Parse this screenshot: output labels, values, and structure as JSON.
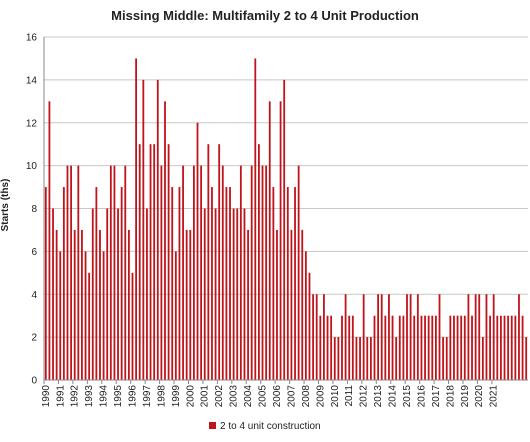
{
  "chart_data": {
    "type": "bar",
    "title": "Missing Middle: Multifamily 2 to 4 Unit Production",
    "ylabel": "Starts (ths)",
    "xlabel": "",
    "ylim": [
      0,
      16
    ],
    "y_ticks": [
      "0",
      "2",
      "4",
      "6",
      "8",
      "10",
      "12",
      "14",
      "16"
    ],
    "x_tick_labels": [
      "1990",
      "1991",
      "1992",
      "1993",
      "1994",
      "1995",
      "1996",
      "1997",
      "1998",
      "1999",
      "2000",
      "2001",
      "2002",
      "2003",
      "2004",
      "2005",
      "2006",
      "2007",
      "2008",
      "2009",
      "2010",
      "2011",
      "2012",
      "2013",
      "2014",
      "2015",
      "2016",
      "2017",
      "2018",
      "2019",
      "2020",
      "2021"
    ],
    "periods_per_year": 4,
    "series": [
      {
        "name": "2 to 4 unit construction",
        "color": "#c0141b",
        "values": [
          9,
          13,
          8,
          7,
          6,
          9,
          10,
          10,
          7,
          10,
          7,
          6,
          5,
          8,
          9,
          7,
          6,
          8,
          10,
          10,
          8,
          9,
          10,
          7,
          5,
          15,
          11,
          14,
          8,
          11,
          11,
          14,
          10,
          13,
          11,
          9,
          6,
          9,
          10,
          7,
          7,
          10,
          12,
          10,
          8,
          11,
          9,
          8,
          11,
          10,
          9,
          9,
          8,
          8,
          10,
          8,
          7,
          10,
          15,
          11,
          10,
          10,
          13,
          9,
          7,
          13,
          14,
          9,
          7,
          9,
          10,
          7,
          6,
          5,
          4,
          4,
          3,
          4,
          3,
          3,
          2,
          2,
          3,
          4,
          3,
          3,
          2,
          2,
          4,
          2,
          2,
          3,
          4,
          4,
          3,
          4,
          3,
          2,
          3,
          3,
          4,
          4,
          3,
          4,
          3,
          3,
          3,
          3,
          3,
          4,
          2,
          2,
          3,
          3,
          3,
          3,
          3,
          4,
          3,
          4,
          4,
          2,
          4,
          3,
          4,
          3,
          3,
          3,
          3,
          3,
          3,
          4,
          3,
          2
        ]
      }
    ],
    "grid": true,
    "legend_position": "bottom-center"
  }
}
